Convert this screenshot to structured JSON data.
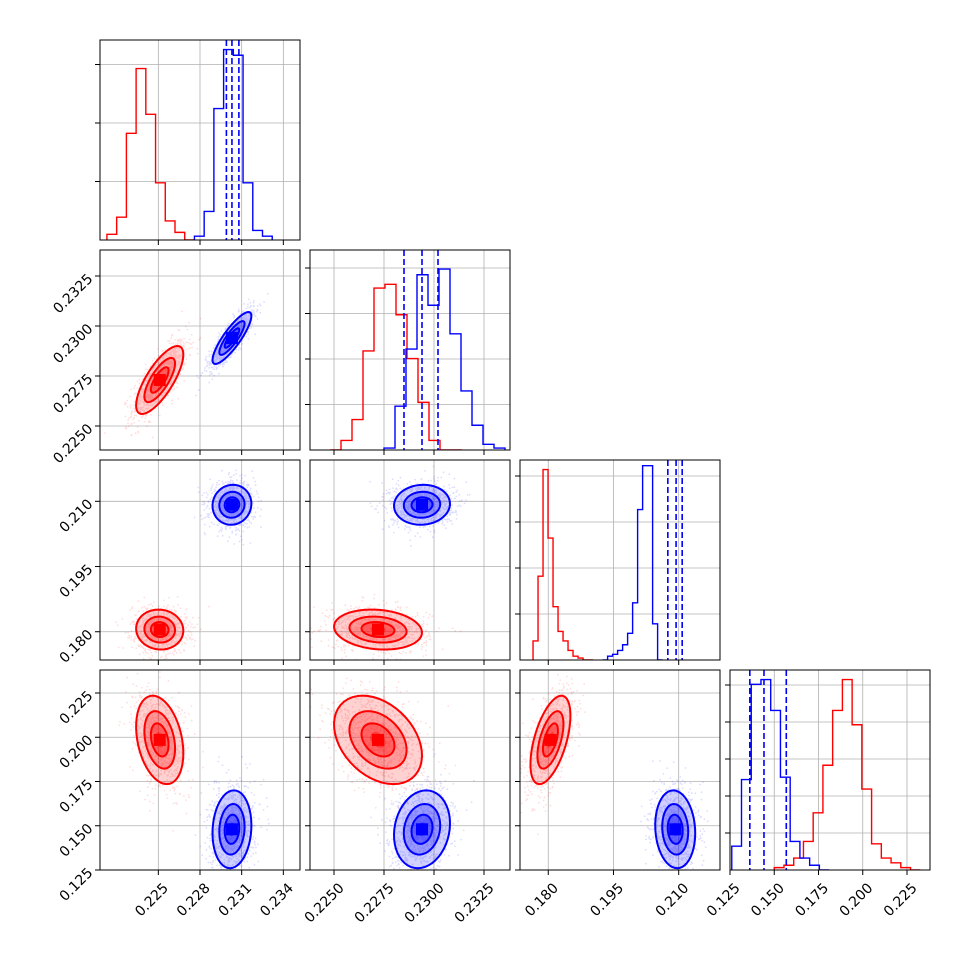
{
  "chart_data": {
    "type": "corner",
    "title": "",
    "colors": {
      "red": "#ff0000",
      "blue": "#0000ff"
    },
    "grid": true,
    "legend": "none",
    "parameters": [
      {
        "range": [
          0.2208,
          0.2352
        ],
        "ticks": [
          0.225,
          0.228,
          0.231,
          0.234
        ],
        "tick_labels": [
          "0.225",
          "0.228",
          "0.231",
          "0.234"
        ]
      },
      {
        "range": [
          0.2238,
          0.2338
        ],
        "ticks": [
          0.225,
          0.2275,
          0.23,
          0.2325
        ],
        "tick_labels": [
          "0.2250",
          "0.2275",
          "0.2300",
          "0.2325"
        ]
      },
      {
        "range": [
          0.1735,
          0.2195
        ],
        "ticks": [
          0.18,
          0.195,
          0.21
        ],
        "tick_labels": [
          "0.180",
          "0.195",
          "0.210"
        ]
      },
      {
        "range": [
          0.125,
          0.238
        ],
        "ticks": [
          0.125,
          0.15,
          0.175,
          0.2,
          0.225
        ],
        "tick_labels": [
          "0.125",
          "0.150",
          "0.175",
          "0.200",
          "0.225"
        ]
      }
    ],
    "diagonal": [
      {
        "ymax": 1.05,
        "red": {
          "start": 0.2213,
          "step": 0.0007,
          "counts": [
            0.03,
            0.12,
            0.56,
            0.9,
            0.66,
            0.3,
            0.1,
            0.04,
            0.0
          ]
        },
        "blue": {
          "start": 0.2276,
          "step": 0.0007,
          "counts": [
            0.02,
            0.15,
            0.69,
            1.0,
            0.97,
            0.3,
            0.05,
            0.02
          ]
        },
        "blue_quantiles": [
          0.2299,
          0.2303,
          0.2308
        ]
      },
      {
        "ymax": 1.05,
        "red": {
          "start": 0.2248,
          "step": 0.00055,
          "counts": [
            0.0,
            0.05,
            0.16,
            0.52,
            0.85,
            0.87,
            0.71,
            0.48,
            0.25,
            0.05,
            0.0,
            0.0
          ]
        },
        "blue": {
          "start": 0.2275,
          "step": 0.00055,
          "counts": [
            0.01,
            0.23,
            0.53,
            0.92,
            0.76,
            0.95,
            0.61,
            0.31,
            0.13,
            0.03,
            0.01
          ]
        },
        "blue_quantiles": [
          0.2285,
          0.2294,
          0.2302
        ]
      },
      {
        "ymax": 1.05,
        "red": {
          "start": 0.1765,
          "step": 0.00115,
          "counts": [
            0.1,
            0.44,
            1.0,
            0.64,
            0.28,
            0.15,
            0.1,
            0.05,
            0.02,
            0.01,
            0.0,
            0.0
          ]
        },
        "blue": {
          "start": 0.1925,
          "step": 0.00115,
          "counts": [
            0.0,
            0.02,
            0.03,
            0.05,
            0.08,
            0.14,
            0.3,
            0.79,
            1.02,
            1.02,
            0.19,
            0.0
          ]
        },
        "blue_quantiles": [
          0.2075,
          0.2094,
          0.2108
        ]
      },
      {
        "ymax": 0.84,
        "red": {
          "start": 0.15,
          "step": 0.0055,
          "counts": [
            0.01,
            0.02,
            0.05,
            0.12,
            0.24,
            0.44,
            0.67,
            0.8,
            0.61,
            0.34,
            0.11,
            0.05,
            0.03,
            0.01,
            0.0
          ]
        },
        "blue": {
          "start": 0.126,
          "step": 0.0055,
          "counts": [
            0.1,
            0.38,
            0.78,
            0.8,
            0.67,
            0.39,
            0.12,
            0.05,
            0.02,
            0.0
          ]
        },
        "blue_quantiles": [
          0.1362,
          0.1442,
          0.1568
        ]
      }
    ],
    "pairs": [
      {
        "row": 1,
        "col": 0,
        "red": {
          "center": [
            0.2251,
            0.2273
          ],
          "sd": [
            0.00085,
            0.00085
          ],
          "rho": 0.75
        },
        "blue": {
          "center": [
            0.2303,
            0.2294
          ],
          "sd": [
            0.0007,
            0.00065
          ],
          "rho": 0.85
        }
      },
      {
        "row": 2,
        "col": 0,
        "red": {
          "center": [
            0.2251,
            0.1805
          ],
          "sd": [
            0.00085,
            0.0023
          ],
          "rho": -0.05
        },
        "blue": {
          "center": [
            0.2303,
            0.2092
          ],
          "sd": [
            0.0007,
            0.0023
          ],
          "rho": 0.05
        }
      },
      {
        "row": 2,
        "col": 1,
        "red": {
          "center": [
            0.2272,
            0.1805
          ],
          "sd": [
            0.0011,
            0.0023
          ],
          "rho": -0.15
        },
        "blue": {
          "center": [
            0.2294,
            0.2092
          ],
          "sd": [
            0.0007,
            0.0023
          ],
          "rho": 0.05
        }
      },
      {
        "row": 3,
        "col": 0,
        "red": {
          "center": [
            0.2251,
            0.1985
          ],
          "sd": [
            0.00085,
            0.0125
          ],
          "rho": -0.3
        },
        "blue": {
          "center": [
            0.2303,
            0.148
          ],
          "sd": [
            0.0007,
            0.011
          ],
          "rho": 0.1
        }
      },
      {
        "row": 3,
        "col": 1,
        "red": {
          "center": [
            0.2272,
            0.1985
          ],
          "sd": [
            0.0011,
            0.0125
          ],
          "rho": -0.35
        },
        "blue": {
          "center": [
            0.2294,
            0.148
          ],
          "sd": [
            0.0007,
            0.011
          ],
          "rho": 0.15
        }
      },
      {
        "row": 3,
        "col": 2,
        "red": {
          "center": [
            0.1805,
            0.1985
          ],
          "sd": [
            0.0023,
            0.0125
          ],
          "rho": 0.55
        },
        "blue": {
          "center": [
            0.2092,
            0.148
          ],
          "sd": [
            0.0023,
            0.011
          ],
          "rho": -0.1
        }
      }
    ]
  }
}
